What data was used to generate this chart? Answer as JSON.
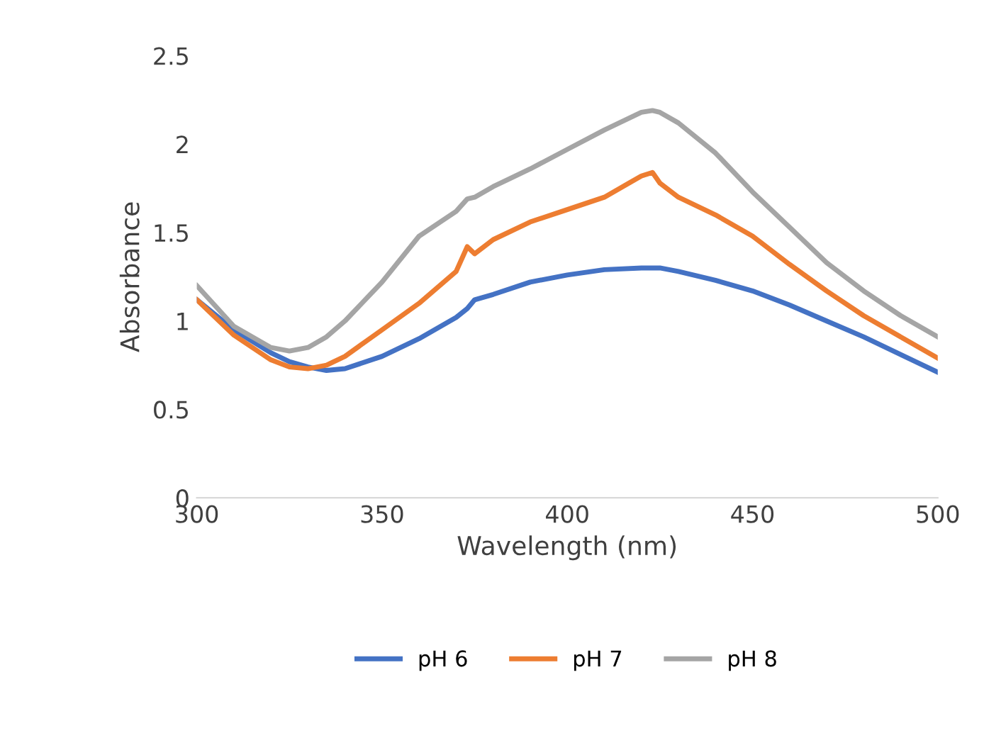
{
  "chart_data": {
    "type": "line",
    "xlabel": "Wavelength (nm)",
    "ylabel": "Absorbance",
    "xlim": [
      300,
      500
    ],
    "xticks": [
      300,
      350,
      400,
      450,
      500
    ],
    "ylim": [
      0,
      2.5
    ],
    "yticks": [
      0,
      0.5,
      1,
      1.5,
      2,
      2.5
    ],
    "grid": false,
    "legend": "bottom",
    "marker": "none",
    "line_style": "solid",
    "x": [
      300,
      310,
      320,
      325,
      330,
      335,
      340,
      350,
      360,
      370,
      373,
      375,
      380,
      390,
      400,
      410,
      420,
      423,
      425,
      430,
      440,
      450,
      460,
      470,
      480,
      490,
      500
    ],
    "series": [
      {
        "name": "pH 6",
        "color": "#4472c4",
        "values": [
          1.12,
          0.95,
          0.82,
          0.77,
          0.74,
          0.72,
          0.73,
          0.8,
          0.9,
          1.02,
          1.07,
          1.12,
          1.15,
          1.22,
          1.26,
          1.29,
          1.3,
          1.3,
          1.3,
          1.28,
          1.23,
          1.17,
          1.09,
          1.0,
          0.91,
          0.81,
          0.71
        ]
      },
      {
        "name": "pH 7",
        "color": "#ed7d31",
        "values": [
          1.12,
          0.92,
          0.78,
          0.74,
          0.73,
          0.75,
          0.8,
          0.95,
          1.1,
          1.28,
          1.42,
          1.38,
          1.46,
          1.56,
          1.63,
          1.7,
          1.82,
          1.84,
          1.78,
          1.7,
          1.6,
          1.48,
          1.32,
          1.17,
          1.03,
          0.91,
          0.79
        ]
      },
      {
        "name": "pH 8",
        "color": "#a5a5a5",
        "values": [
          1.2,
          0.97,
          0.85,
          0.83,
          0.85,
          0.91,
          1.0,
          1.22,
          1.48,
          1.62,
          1.69,
          1.7,
          1.76,
          1.86,
          1.97,
          2.08,
          2.18,
          2.19,
          2.18,
          2.12,
          1.95,
          1.73,
          1.53,
          1.33,
          1.17,
          1.03,
          0.91
        ]
      }
    ]
  }
}
